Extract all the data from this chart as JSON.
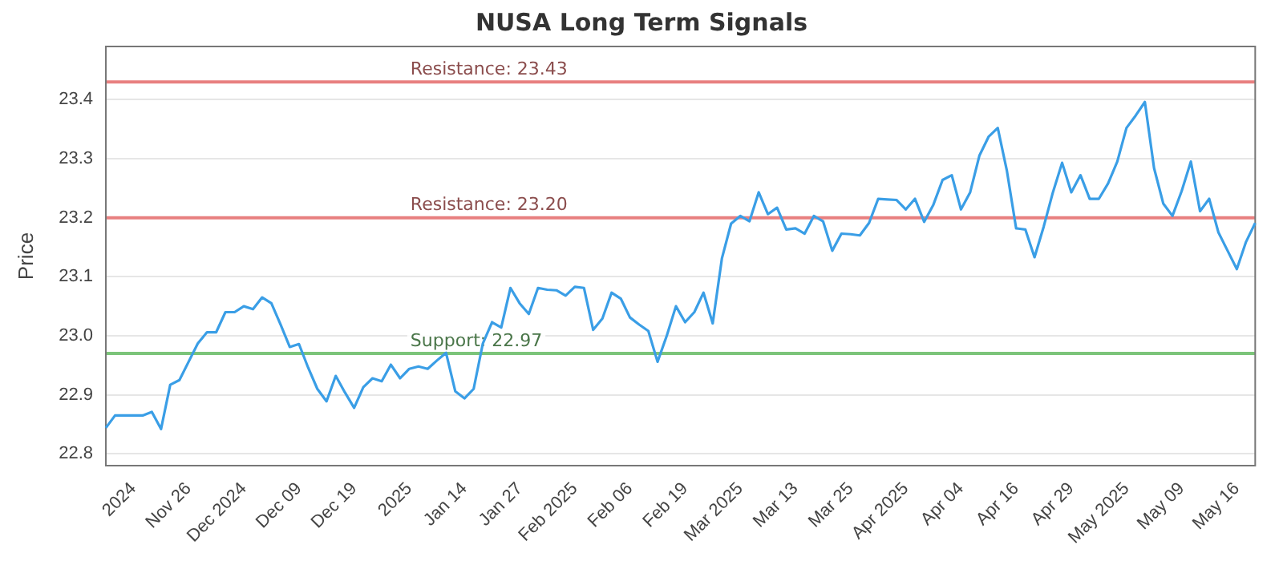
{
  "chart_data": {
    "type": "line",
    "title": "NUSA Long Term Signals",
    "ylabel": "Price",
    "categories": [
      null,
      null,
      null,
      "2024",
      null,
      null,
      null,
      null,
      null,
      "Nov 26",
      null,
      null,
      null,
      null,
      null,
      "Dec 2024",
      null,
      null,
      null,
      null,
      null,
      "Dec 09",
      null,
      null,
      null,
      null,
      null,
      "Dec 19",
      null,
      null,
      null,
      null,
      null,
      "2025",
      null,
      null,
      null,
      null,
      null,
      "Jan 14",
      null,
      null,
      null,
      null,
      null,
      "Jan 27",
      null,
      null,
      null,
      null,
      null,
      "Feb 2025",
      null,
      null,
      null,
      null,
      null,
      "Feb 06",
      null,
      null,
      null,
      null,
      null,
      "Feb 19",
      null,
      null,
      null,
      null,
      null,
      "Mar 2025",
      null,
      null,
      null,
      null,
      null,
      "Mar 13",
      null,
      null,
      null,
      null,
      null,
      "Mar 25",
      null,
      null,
      null,
      null,
      null,
      "Apr 2025",
      null,
      null,
      null,
      null,
      null,
      "Apr 04",
      null,
      null,
      null,
      null,
      null,
      "Apr 16",
      null,
      null,
      null,
      null,
      null,
      "Apr 29",
      null,
      null,
      null,
      null,
      null,
      "May 2025",
      null,
      null,
      null,
      null,
      null,
      "May 09",
      null,
      null,
      null,
      null,
      null,
      "May 16",
      null,
      null
    ],
    "series": [
      {
        "color": "#3a9ee6",
        "values": [
          22.844,
          22.865,
          22.865,
          22.865,
          22.865,
          22.871,
          22.842,
          22.917,
          22.925,
          22.956,
          22.987,
          23.006,
          23.006,
          23.04,
          23.04,
          23.05,
          23.045,
          23.065,
          23.055,
          23.019,
          22.981,
          22.986,
          22.946,
          22.91,
          22.889,
          22.932,
          22.904,
          22.878,
          22.913,
          22.928,
          22.923,
          22.951,
          22.928,
          22.944,
          22.948,
          22.944,
          22.958,
          22.971,
          22.906,
          22.894,
          22.91,
          22.987,
          23.023,
          23.014,
          23.081,
          23.055,
          23.037,
          23.081,
          23.078,
          23.077,
          23.068,
          23.083,
          23.081,
          23.01,
          23.029,
          23.073,
          23.063,
          23.031,
          23.019,
          23.008,
          22.956,
          23.0,
          23.05,
          23.023,
          23.04,
          23.073,
          23.021,
          23.131,
          23.19,
          23.203,
          23.194,
          23.243,
          23.206,
          23.217,
          23.18,
          23.182,
          23.173,
          23.203,
          23.194,
          23.144,
          23.173,
          23.172,
          23.17,
          23.191,
          23.232,
          23.231,
          23.23,
          23.214,
          23.232,
          23.193,
          23.222,
          23.264,
          23.272,
          23.214,
          23.243,
          23.305,
          23.337,
          23.352,
          23.279,
          23.182,
          23.18,
          23.133,
          23.185,
          23.243,
          23.293,
          23.243,
          23.272,
          23.232,
          23.232,
          23.258,
          23.295,
          23.352,
          23.373,
          23.396,
          23.284,
          23.224,
          23.203,
          23.245,
          23.295,
          23.211,
          23.232,
          23.175,
          23.144,
          23.113,
          23.159,
          23.191
        ]
      }
    ],
    "ylim": [
      22.78,
      23.49
    ],
    "yticks": [
      22.8,
      22.9,
      {
        "value": 23,
        "label": "23.0"
      },
      23.1,
      23.2,
      23.3,
      23.4
    ],
    "ref_lines": [
      {
        "axis": "y",
        "value": 23.43,
        "label": "Resistance: 23.43",
        "color": "#e88080"
      },
      {
        "axis": "y",
        "value": 23.2,
        "label": "Resistance: 23.20",
        "color": "#e88080"
      },
      {
        "axis": "y",
        "value": 22.97,
        "label": "Support: 22.97",
        "color": "#7cc47a"
      }
    ],
    "grid": "y",
    "legend": false,
    "marker": "none",
    "line_style": "solid"
  }
}
